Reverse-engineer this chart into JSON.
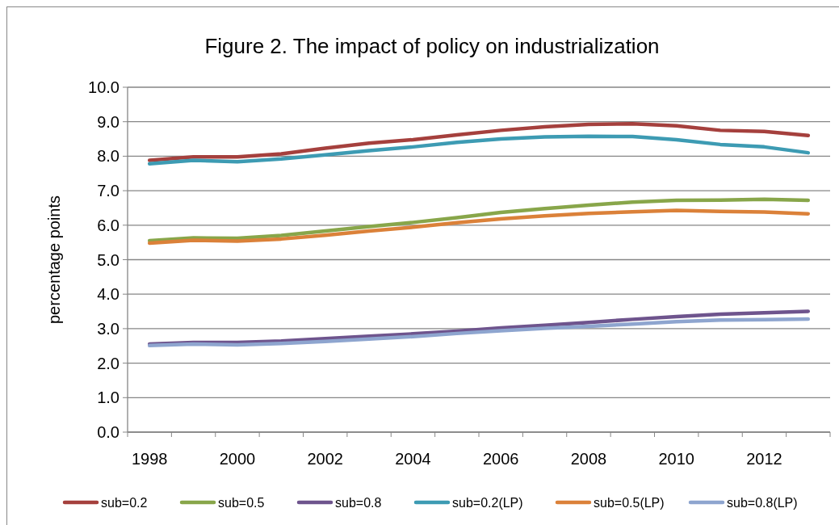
{
  "chart_data": {
    "type": "line",
    "title": "Figure 2. The impact of policy on industrialization",
    "ylabel": "percentage points",
    "categories": [
      "1998",
      null,
      "2000",
      null,
      "2002",
      null,
      "2004",
      null,
      "2006",
      null,
      "2008",
      null,
      "2010",
      null,
      "2012",
      null
    ],
    "series": [
      {
        "name": "sub=0.2",
        "color": "#a5403d",
        "values": [
          7.88,
          7.98,
          7.98,
          8.07,
          8.23,
          8.38,
          8.48,
          8.62,
          8.75,
          8.85,
          8.92,
          8.94,
          8.88,
          8.75,
          8.72,
          8.6
        ]
      },
      {
        "name": "sub=0.5",
        "color": "#88a64a",
        "values": [
          5.55,
          5.63,
          5.62,
          5.7,
          5.83,
          5.96,
          6.08,
          6.22,
          6.37,
          6.48,
          6.58,
          6.67,
          6.72,
          6.73,
          6.75,
          6.72
        ]
      },
      {
        "name": "sub=0.8",
        "color": "#6e548d",
        "values": [
          2.55,
          2.6,
          2.6,
          2.64,
          2.71,
          2.78,
          2.85,
          2.93,
          3.02,
          3.1,
          3.18,
          3.27,
          3.35,
          3.42,
          3.46,
          3.5
        ]
      },
      {
        "name": "sub=0.2(LP)",
        "color": "#3d9bb3",
        "values": [
          7.78,
          7.88,
          7.84,
          7.92,
          8.04,
          8.16,
          8.27,
          8.4,
          8.5,
          8.56,
          8.58,
          8.57,
          8.48,
          8.34,
          8.27,
          8.1
        ]
      },
      {
        "name": "sub=0.5(LP)",
        "color": "#db8139",
        "values": [
          5.48,
          5.56,
          5.54,
          5.6,
          5.71,
          5.83,
          5.94,
          6.07,
          6.18,
          6.27,
          6.34,
          6.39,
          6.43,
          6.4,
          6.38,
          6.33
        ]
      },
      {
        "name": "sub=0.8(LP)",
        "color": "#8ea5cf",
        "values": [
          2.51,
          2.55,
          2.53,
          2.57,
          2.63,
          2.7,
          2.77,
          2.86,
          2.94,
          3.01,
          3.07,
          3.13,
          3.2,
          3.25,
          3.26,
          3.28
        ]
      }
    ],
    "ylim": [
      0,
      10
    ],
    "yticks": [
      {
        "value": 0,
        "label": "0.0"
      },
      {
        "value": 1,
        "label": "1.0"
      },
      {
        "value": 2,
        "label": "2.0"
      },
      {
        "value": 3,
        "label": "3.0"
      },
      {
        "value": 4,
        "label": "4.0"
      },
      {
        "value": 5,
        "label": "5.0"
      },
      {
        "value": 6,
        "label": "6.0"
      },
      {
        "value": 7,
        "label": "7.0"
      },
      {
        "value": 8,
        "label": "8.0"
      },
      {
        "value": 9,
        "label": "9.0"
      },
      {
        "value": 10,
        "label": "10.0"
      }
    ],
    "grid": "y",
    "legend": "bottom",
    "marker": "none",
    "line_style": "solid"
  }
}
